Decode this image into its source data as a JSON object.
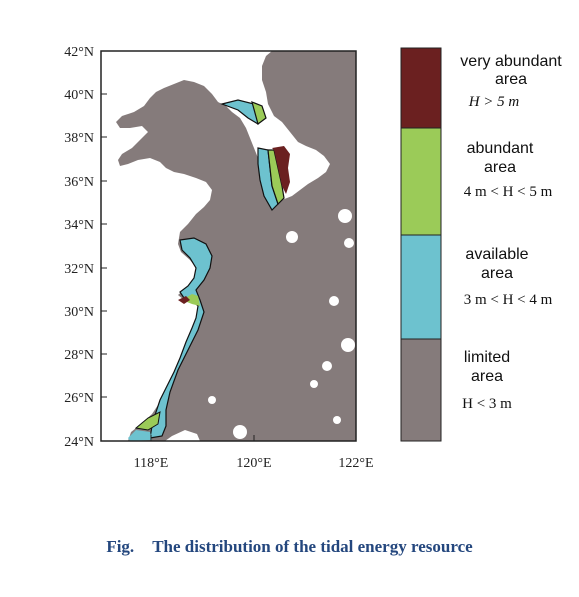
{
  "map": {
    "lat_labels": [
      "42°N",
      "40°N",
      "38°N",
      "36°N",
      "34°N",
      "32°N",
      "30°N",
      "28°N",
      "26°N",
      "24°N"
    ],
    "lon_labels": [
      "118°E",
      "120°E",
      "122°E"
    ],
    "land_color": "#857b7b",
    "sea_color": "#ffffff",
    "frame_color": "#222222"
  },
  "legend": {
    "items": [
      {
        "title_lines": [
          "very abundant",
          "area"
        ],
        "condition": "H > 5 m",
        "color": "#6b2020"
      },
      {
        "title_lines": [
          "abundant",
          "area"
        ],
        "condition": "4 m < H < 5 m",
        "color": "#9bcb58"
      },
      {
        "title_lines": [
          "available",
          "area"
        ],
        "condition": "3 m < H < 4 m",
        "color": "#6dc2cf"
      },
      {
        "title_lines": [
          "limited",
          "area"
        ],
        "condition": "H < 3 m",
        "color": "#857b7b"
      }
    ]
  },
  "caption": {
    "label": "Fig.",
    "text": "The distribution of the tidal energy resource"
  }
}
